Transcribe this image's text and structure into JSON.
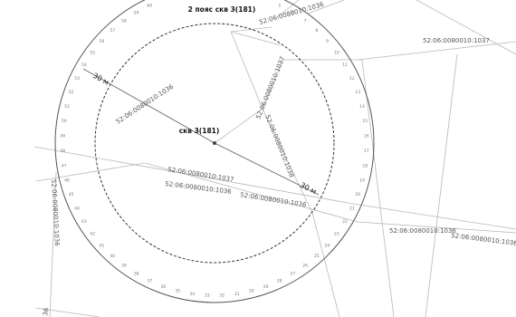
{
  "map": {
    "title": "2 пояс скв 3(181)",
    "well_label": "скв 3(181)",
    "distance_label": "30 м",
    "parcel_labels": {
      "top_right_1036": "52:06:0080010:1036",
      "top_right_1037": "52:06:0080010:1037",
      "upper_left_1036": "52:06:0080010:1036",
      "diag_1037": "52:06:0080010:1037",
      "diag_1038": "52:06:0080010:1038",
      "mid_1037": "52:06:0080010:1037",
      "mid_1036": "52:06:0080010:1036",
      "mid_right_1036": "52:06:0080010:1036",
      "right_1036": "52:06:0080010:1036",
      "far_right_1036": "52:06:0080010:1036",
      "left_vert_1036": "52:06:0080010:1036",
      "bottom_left_fragment": "36"
    },
    "colors": {
      "outer_ring": "#555555",
      "inner_ring": "#333333",
      "lines": "#b5b5b5",
      "radius_line": "#666666",
      "center_point": "#444444"
    },
    "outer_ring_numbers": [
      "1",
      "2",
      "3",
      "4",
      "5",
      "6",
      "7",
      "8",
      "9",
      "10",
      "11",
      "12",
      "13",
      "14",
      "15",
      "16",
      "17",
      "18",
      "19",
      "20",
      "21",
      "22",
      "23",
      "24",
      "25",
      "26",
      "27",
      "28",
      "29",
      "30",
      "31",
      "32",
      "33",
      "34",
      "35",
      "36",
      "37",
      "38",
      "39",
      "40",
      "41",
      "42",
      "43",
      "44",
      "45",
      "46",
      "47",
      "48",
      "49",
      "50",
      "51",
      "52",
      "53",
      "54",
      "55",
      "56",
      "57",
      "58",
      "59",
      "60",
      "61",
      "62",
      "63",
      "64"
    ]
  }
}
